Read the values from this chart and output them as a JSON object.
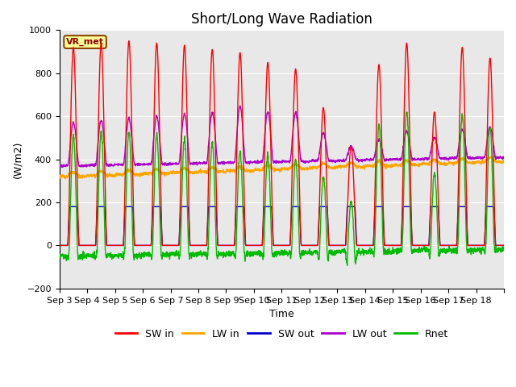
{
  "title": "Short/Long Wave Radiation",
  "ylabel": "(W/m2)",
  "xlabel": "Time",
  "ylim": [
    -200,
    1000
  ],
  "yticks": [
    -200,
    0,
    200,
    400,
    600,
    800,
    1000
  ],
  "colors": {
    "SW in": "#ff0000",
    "LW in": "#ffa500",
    "SW out": "#0000cc",
    "LW out": "#aa00cc",
    "Rnet": "#00bb00"
  },
  "bg_color": "#e8e8e8",
  "label_box": "VR_met",
  "label_box_color": "#ffff99",
  "label_box_border": "#8b4500",
  "xtick_labels": [
    "Sep 3",
    "Sep 4",
    "Sep 5",
    "Sep 6",
    "Sep 7",
    "Sep 8",
    "Sep 9",
    "Sep 10",
    "Sep 11",
    "Sep 12",
    "Sep 13",
    "Sep 14",
    "Sep 15",
    "Sep 16",
    "Sep 17",
    "Sep 18"
  ],
  "legend_labels": [
    "SW in",
    "LW in",
    "SW out",
    "LW out",
    "Rnet"
  ],
  "title_fontsize": 12,
  "axis_fontsize": 9,
  "tick_fontsize": 8,
  "peaks_sw_in": [
    920,
    940,
    950,
    940,
    930,
    910,
    895,
    850,
    820,
    640,
    460,
    840,
    940,
    620,
    920,
    870
  ],
  "lw_out_base": 380,
  "lw_in_base": 320,
  "rnet_night": -75
}
